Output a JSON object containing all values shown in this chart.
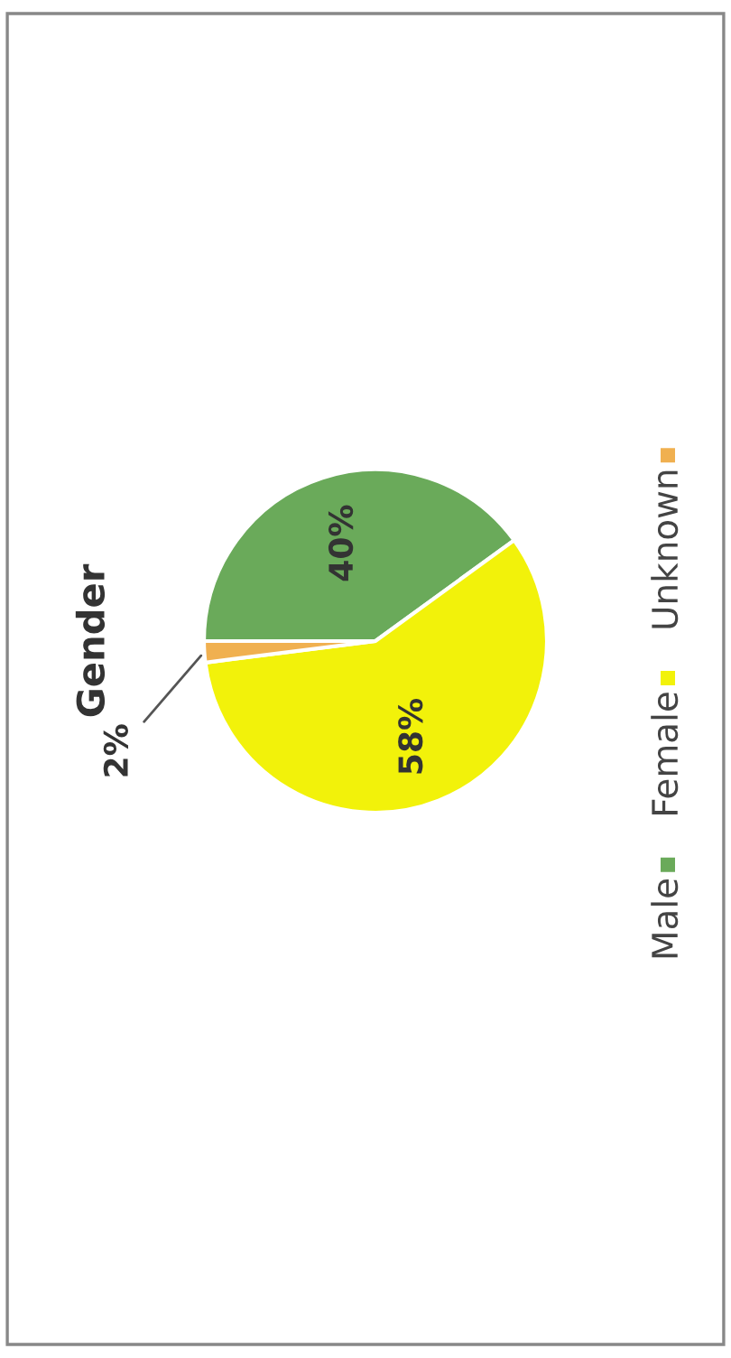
{
  "chart_data": {
    "type": "pie",
    "title": "Gender",
    "categories": [
      "Male",
      "Female",
      "Unknown"
    ],
    "values": [
      40,
      58,
      2
    ],
    "colors": [
      "#6aaa5a",
      "#f2f20a",
      "#f0b050"
    ],
    "value_labels": [
      "40%",
      "58%",
      "2%"
    ],
    "legend": "right"
  }
}
